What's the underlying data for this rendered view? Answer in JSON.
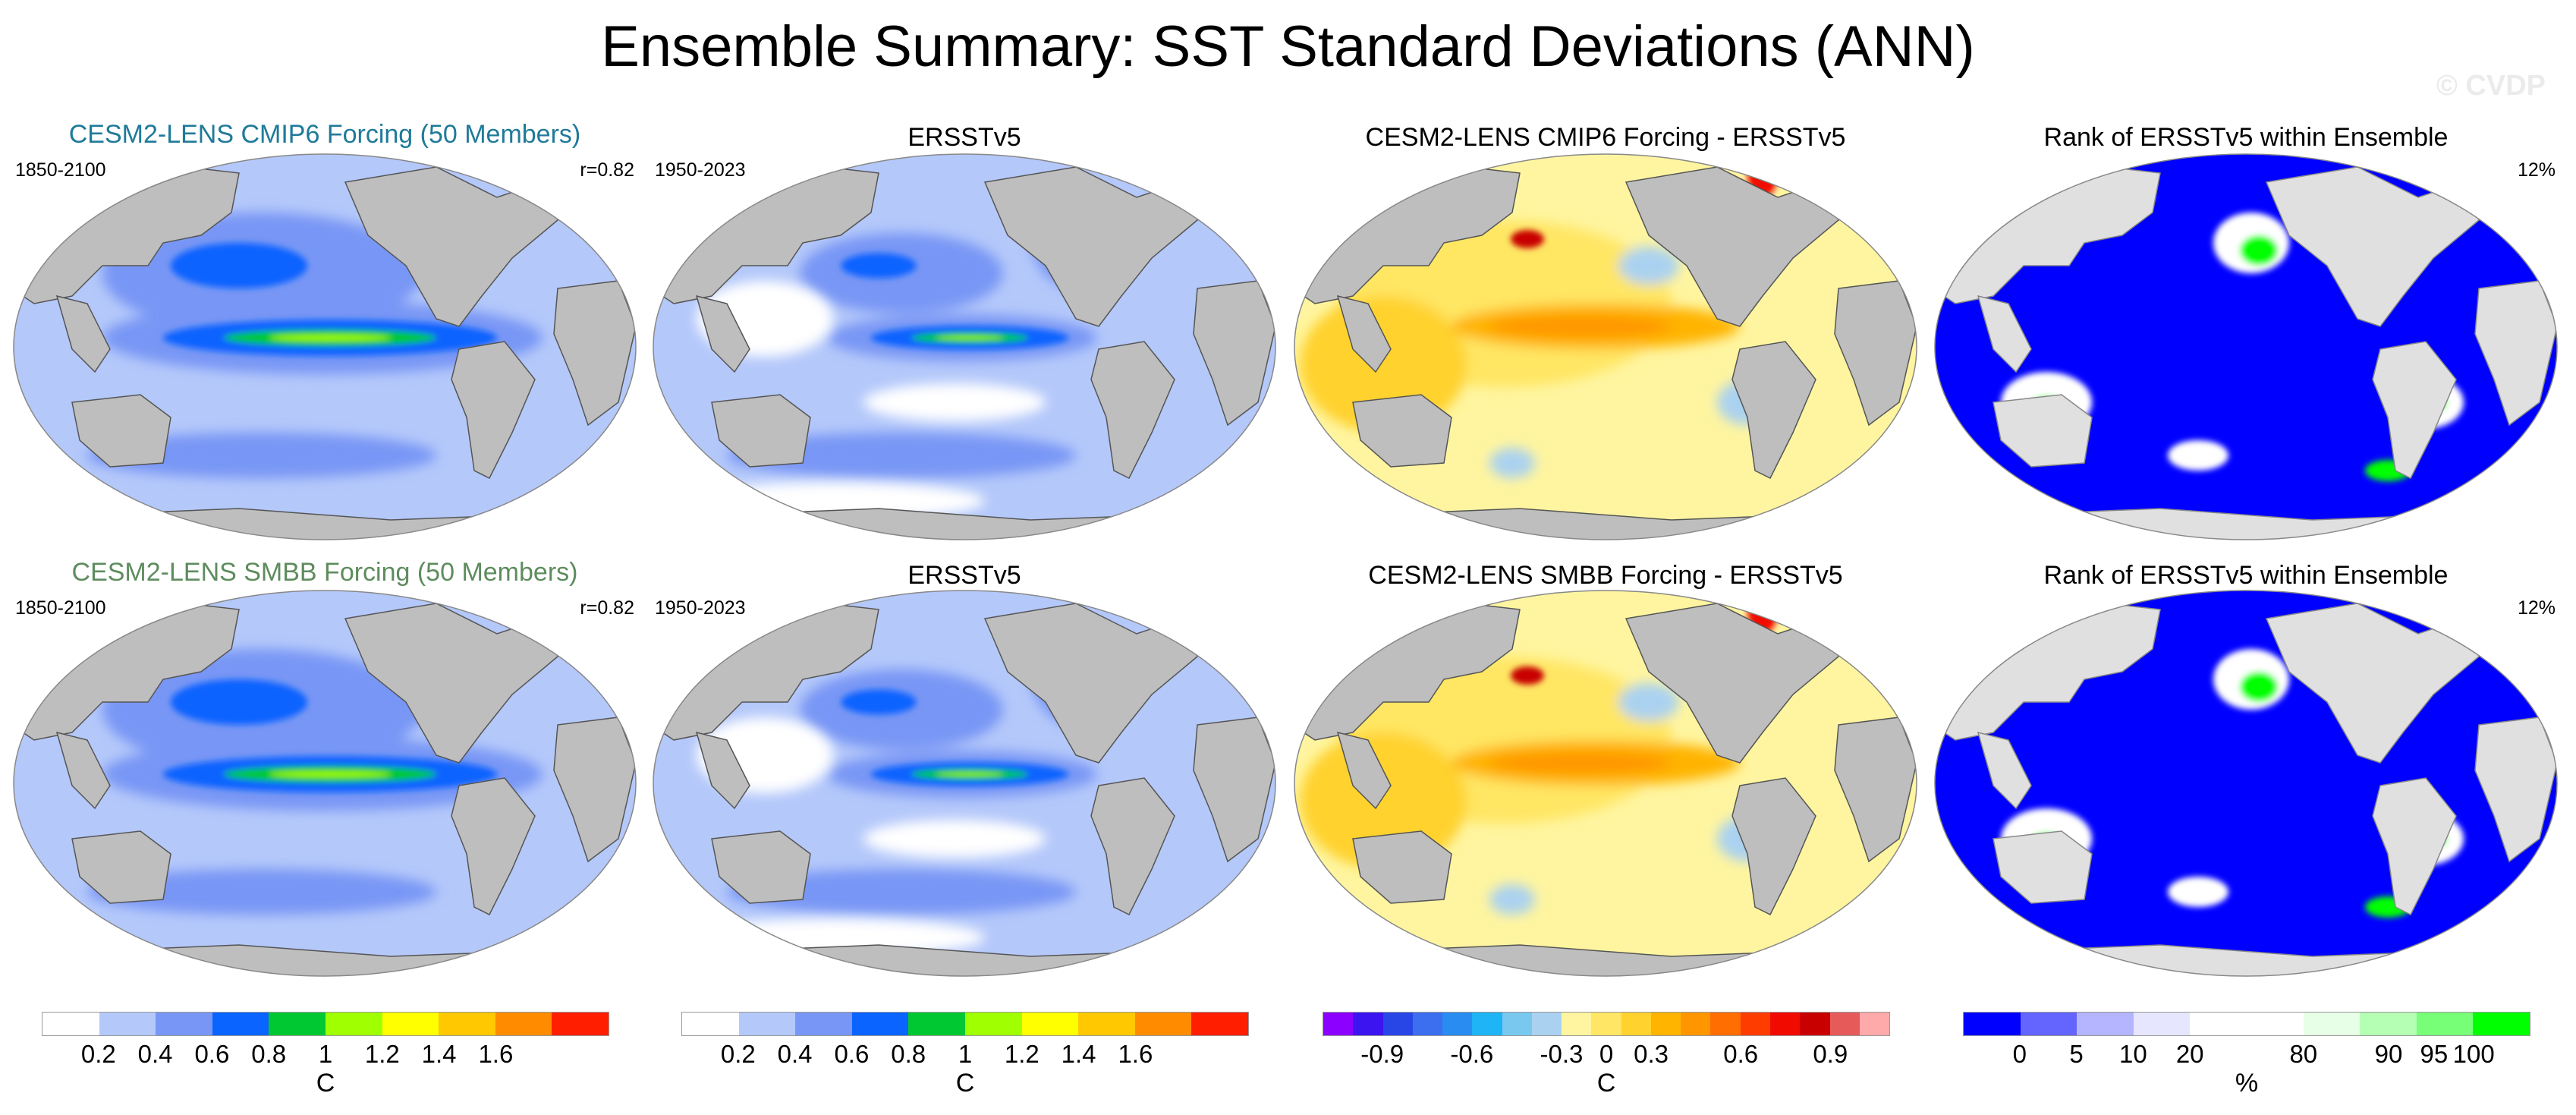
{
  "title": "Ensemble Summary: SST Standard Deviations (ANN)",
  "watermark": "© CVDP",
  "rows": [
    {
      "model": {
        "title": "CESM2-LENS CMIP6 Forcing (50 Members)",
        "title_color": "#1f7a99",
        "period": "1850-2100",
        "stat": "r=0.82"
      },
      "obs": {
        "title": "ERSSTv5",
        "period": "1950-2023"
      },
      "diff": {
        "title": "CESM2-LENS CMIP6 Forcing - ERSSTv5"
      },
      "rank": {
        "title": "Rank of ERSSTv5 within Ensemble",
        "stat": "12%"
      }
    },
    {
      "model": {
        "title": "CESM2-LENS SMBB Forcing (50 Members)",
        "title_color": "#5e8c5e",
        "period": "1850-2100",
        "stat": "r=0.82"
      },
      "obs": {
        "title": "ERSSTv5",
        "period": "1950-2023"
      },
      "diff": {
        "title": "CESM2-LENS SMBB Forcing - ERSSTv5"
      },
      "rank": {
        "title": "Rank of ERSSTv5 within Ensemble",
        "stat": "12%"
      }
    }
  ],
  "colorbars": [
    {
      "unit": "C",
      "ticks": [
        "0.2",
        "0.4",
        "0.6",
        "0.8",
        "1",
        "1.2",
        "1.4",
        "1.6"
      ],
      "colors": [
        "#ffffff",
        "#b4c8fa",
        "#7896f5",
        "#0a64ff",
        "#00c832",
        "#a0ff00",
        "#ffff00",
        "#ffc800",
        "#ff8c00",
        "#ff1e00"
      ]
    },
    {
      "unit": "C",
      "ticks": [
        "0.2",
        "0.4",
        "0.6",
        "0.8",
        "1",
        "1.2",
        "1.4",
        "1.6"
      ],
      "colors": [
        "#ffffff",
        "#b4c8fa",
        "#7896f5",
        "#0a64ff",
        "#00c832",
        "#a0ff00",
        "#ffff00",
        "#ffc800",
        "#ff8c00",
        "#ff1e00"
      ]
    },
    {
      "unit": "C",
      "ticks": [
        "-0.9",
        "-0.6",
        "-0.3",
        "0",
        "0.3",
        "0.6",
        "0.9"
      ],
      "colors": [
        "#8c00ff",
        "#3c14f0",
        "#2846e6",
        "#3c6ef0",
        "#288cf0",
        "#1eb4f5",
        "#78c8f0",
        "#aad2f0",
        "#fff5a0",
        "#ffe664",
        "#ffd22d",
        "#ffb400",
        "#ff9600",
        "#ff6e00",
        "#ff3c00",
        "#f00a00",
        "#c80000",
        "#e65a5a",
        "#ffaaaa"
      ]
    },
    {
      "unit": "%",
      "ticks": [
        "0",
        "5",
        "10",
        "20",
        "80",
        "90",
        "95",
        "100"
      ],
      "colors": [
        "#0000ff",
        "#6464ff",
        "#b4b4ff",
        "#e6e6ff",
        "#ffffff",
        "#ffffff",
        "#e6ffe6",
        "#b4ffb4",
        "#78ff78",
        "#00ff00"
      ]
    }
  ]
}
